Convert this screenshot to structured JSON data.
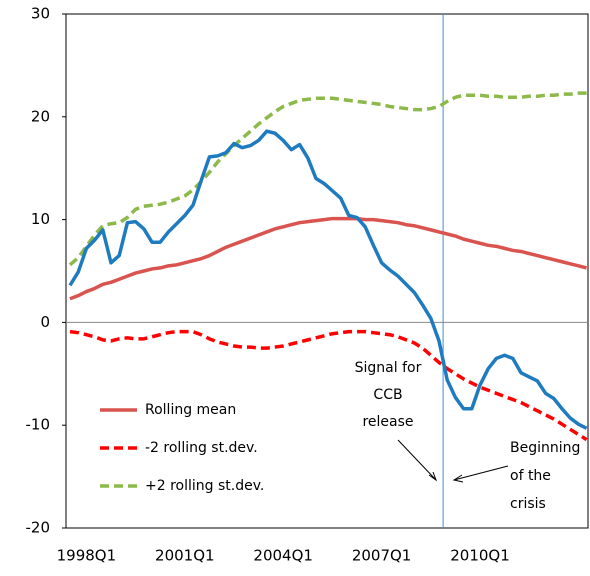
{
  "chart_data": {
    "type": "line",
    "categories": [
      null,
      null,
      "1998Q1",
      null,
      null,
      null,
      null,
      null,
      null,
      null,
      null,
      null,
      null,
      null,
      "2001Q1",
      null,
      null,
      null,
      null,
      null,
      null,
      null,
      null,
      null,
      null,
      null,
      "2004Q1",
      null,
      null,
      null,
      null,
      null,
      null,
      null,
      null,
      null,
      null,
      null,
      "2007Q1",
      null,
      null,
      null,
      null,
      null,
      null,
      null,
      null,
      null,
      null,
      null,
      "2010Q1",
      null,
      null,
      null,
      null,
      null,
      null,
      null,
      null,
      null,
      null,
      null,
      null,
      null
    ],
    "series": [
      {
        "name": "Rolling mean",
        "color": "#d9534f",
        "style": "solid",
        "values": [
          2.3,
          2.6,
          3.0,
          3.3,
          3.7,
          3.9,
          4.2,
          4.5,
          4.8,
          5.0,
          5.2,
          5.3,
          5.5,
          5.6,
          5.8,
          6.0,
          6.2,
          6.5,
          6.9,
          7.3,
          7.6,
          7.9,
          8.2,
          8.5,
          8.8,
          9.1,
          9.3,
          9.5,
          9.7,
          9.8,
          9.9,
          10.0,
          10.1,
          10.1,
          10.1,
          10.1,
          10.0,
          10.0,
          9.9,
          9.8,
          9.7,
          9.5,
          9.4,
          9.2,
          9.0,
          8.8,
          8.6,
          8.4,
          8.1,
          7.9,
          7.7,
          7.5,
          7.4,
          7.2,
          7.0,
          6.9,
          6.7,
          6.5,
          6.3,
          6.1,
          5.9,
          5.7,
          5.5,
          5.3
        ]
      },
      {
        "name": "-2 rolling st.dev.",
        "color": "#ff0000",
        "style": "dashed",
        "values": [
          -0.9,
          -1.0,
          -1.2,
          -1.4,
          -1.7,
          -1.8,
          -1.6,
          -1.5,
          -1.6,
          -1.6,
          -1.4,
          -1.2,
          -1.0,
          -0.9,
          -0.9,
          -0.9,
          -1.2,
          -1.6,
          -1.9,
          -2.1,
          -2.3,
          -2.4,
          -2.4,
          -2.5,
          -2.5,
          -2.4,
          -2.3,
          -2.1,
          -1.9,
          -1.7,
          -1.5,
          -1.3,
          -1.1,
          -1.0,
          -0.9,
          -0.9,
          -0.9,
          -1.0,
          -1.1,
          -1.2,
          -1.4,
          -1.7,
          -2.0,
          -2.5,
          -3.2,
          -3.9,
          -4.5,
          -5.0,
          -5.5,
          -5.9,
          -6.3,
          -6.6,
          -6.9,
          -7.2,
          -7.5,
          -7.8,
          -8.2,
          -8.6,
          -9.0,
          -9.4,
          -9.9,
          -10.4,
          -10.9,
          -11.4
        ]
      },
      {
        "name": "+2 rolling st.dev.",
        "color": "#8db84a",
        "style": "dashed",
        "values": [
          5.6,
          6.3,
          7.4,
          8.5,
          9.4,
          9.6,
          9.7,
          10.2,
          11.0,
          11.3,
          11.4,
          11.5,
          11.7,
          12.0,
          12.3,
          12.9,
          13.7,
          14.6,
          15.6,
          16.4,
          17.2,
          17.9,
          18.6,
          19.3,
          19.9,
          20.5,
          21.0,
          21.3,
          21.6,
          21.7,
          21.8,
          21.8,
          21.8,
          21.7,
          21.6,
          21.5,
          21.4,
          21.3,
          21.2,
          21.0,
          20.9,
          20.8,
          20.7,
          20.7,
          20.8,
          21.0,
          21.5,
          21.9,
          22.1,
          22.1,
          22.1,
          22.0,
          22.0,
          21.9,
          21.9,
          21.9,
          22.0,
          22.0,
          22.1,
          22.1,
          22.2,
          22.2,
          22.3,
          22.3
        ]
      },
      {
        "color": "#1f7bc0",
        "style": "solid",
        "values": [
          3.6,
          4.9,
          7.2,
          8.0,
          9.0,
          5.8,
          6.5,
          9.7,
          9.8,
          9.1,
          7.8,
          7.8,
          8.8,
          9.6,
          10.4,
          11.4,
          13.8,
          16.1,
          16.2,
          16.5,
          17.4,
          17.0,
          17.2,
          17.7,
          18.6,
          18.4,
          17.7,
          16.8,
          17.3,
          16.0,
          14.0,
          13.5,
          12.8,
          12.1,
          10.4,
          10.2,
          9.3,
          7.5,
          5.8,
          5.1,
          4.5,
          3.7,
          2.9,
          1.7,
          0.4,
          -1.8,
          -5.6,
          -7.3,
          -8.4,
          -8.4,
          -6.1,
          -4.5,
          -3.5,
          -3.2,
          -3.5,
          -4.9,
          -5.3,
          -5.7,
          -6.9,
          -7.4,
          -8.4,
          -9.3,
          -9.9,
          -10.3
        ]
      }
    ],
    "ylim": [
      -20,
      30
    ],
    "yticks": [
      -20,
      -10,
      0,
      10,
      20,
      30
    ],
    "vertical_line": {
      "x": 45.5,
      "color": "#3d8fd1"
    },
    "annotations": [
      [
        "Signal for",
        "CCB",
        "release"
      ],
      [
        "Beginning",
        "of the",
        "crisis"
      ]
    ]
  }
}
